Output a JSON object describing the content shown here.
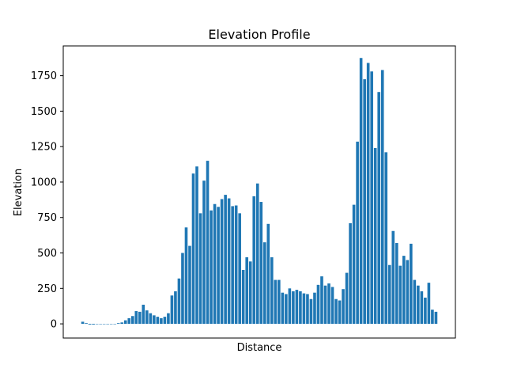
{
  "chart_data": {
    "type": "bar",
    "title": "Elevation Profile",
    "xlabel": "Distance",
    "ylabel": "Elevation",
    "ylim": [
      -100,
      1960
    ],
    "yticks": [
      0,
      250,
      500,
      750,
      1000,
      1250,
      1500,
      1750
    ],
    "ytick_labels": [
      "0",
      "250",
      "500",
      "750",
      "1000",
      "1250",
      "1500",
      "1750"
    ],
    "grid": false,
    "bar_color": "#1f77b4",
    "values": [
      15,
      5,
      -5,
      -5,
      0,
      0,
      0,
      0,
      0,
      0,
      5,
      10,
      25,
      40,
      55,
      90,
      85,
      135,
      95,
      75,
      60,
      50,
      40,
      50,
      75,
      200,
      230,
      320,
      500,
      680,
      550,
      1060,
      1110,
      780,
      1010,
      1150,
      800,
      845,
      825,
      880,
      910,
      885,
      830,
      835,
      780,
      380,
      470,
      440,
      900,
      990,
      860,
      575,
      705,
      470,
      310,
      310,
      220,
      210,
      250,
      230,
      240,
      230,
      215,
      210,
      175,
      220,
      275,
      335,
      270,
      285,
      260,
      175,
      165,
      245,
      360,
      710,
      840,
      1285,
      1875,
      1725,
      1840,
      1780,
      1240,
      1635,
      1790,
      1210,
      415,
      655,
      570,
      410,
      480,
      450,
      565,
      310,
      270,
      230,
      185,
      290,
      100,
      85
    ]
  }
}
